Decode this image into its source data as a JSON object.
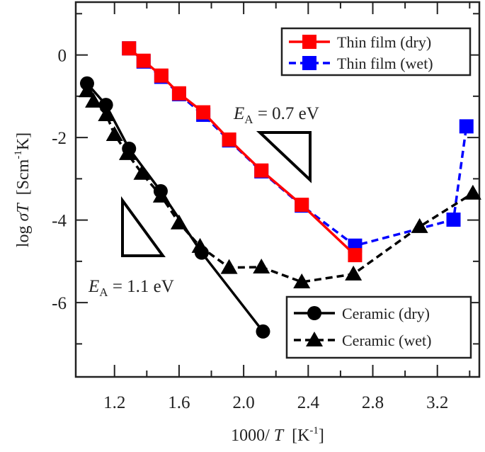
{
  "chart_data": {
    "type": "line",
    "xlabel": "1000/ T  [K-1]",
    "xlabel_parts": {
      "prefix": "1000/ ",
      "var": "T",
      "unit_open": "  [K",
      "unit_sup": "-1",
      "unit_close": "]"
    },
    "ylabel": "log σT  [Scm-1K]",
    "ylabel_parts": {
      "prefix": "log ",
      "var": "σT",
      "unit_open": "  [Scm",
      "unit_sup": "-1",
      "unit_close": "K]"
    },
    "xlim": [
      0.96,
      3.46
    ],
    "ylim": [
      -7.8,
      1.28
    ],
    "xticks": [
      1.2,
      1.6,
      2.0,
      2.4,
      2.8,
      3.2
    ],
    "xtick_labels": [
      "1.2",
      "1.6",
      "2.0",
      "2.4",
      "2.8",
      "3.2"
    ],
    "xminor": [
      1.4,
      1.8,
      2.2,
      2.6,
      3.0,
      3.4
    ],
    "yticks": [
      0,
      -2,
      -4,
      -6
    ],
    "ytick_labels": [
      "0",
      "-2",
      "-4",
      "-6"
    ],
    "yminor": [
      1,
      -1,
      -3,
      -5,
      -7
    ],
    "grid": false,
    "series": [
      {
        "name": "Thin film (dry)",
        "color": "#ff0000",
        "marker": "square",
        "line": "solid",
        "x": [
          1.29,
          1.38,
          1.49,
          1.6,
          1.75,
          1.91,
          2.11,
          2.36,
          2.69
        ],
        "y": [
          0.16,
          -0.14,
          -0.5,
          -0.93,
          -1.39,
          -2.05,
          -2.8,
          -3.63,
          -4.85
        ]
      },
      {
        "name": "Thin film (wet)",
        "color": "#0000ff",
        "marker": "square",
        "line": "dashed",
        "x": [
          1.29,
          1.38,
          1.49,
          1.6,
          1.75,
          1.91,
          2.11,
          2.36,
          2.69,
          3.3,
          3.38
        ],
        "y": [
          0.16,
          -0.16,
          -0.53,
          -0.95,
          -1.45,
          -2.07,
          -2.82,
          -3.65,
          -4.62,
          -3.99,
          -1.73
        ]
      },
      {
        "name": "Ceramic (dry)",
        "color": "#000000",
        "marker": "circle",
        "line": "solid",
        "x": [
          1.03,
          1.147,
          1.29,
          1.486,
          1.74,
          2.12
        ],
        "y": [
          -0.69,
          -1.21,
          -2.27,
          -3.3,
          -4.79,
          -6.7
        ]
      },
      {
        "name": "Ceramic (wet)",
        "color": "#000000",
        "marker": "triangle",
        "line": "dashed",
        "x": [
          1.03,
          1.07,
          1.15,
          1.2,
          1.28,
          1.37,
          1.49,
          1.6,
          1.73,
          1.91,
          2.11,
          2.36,
          2.68,
          3.09,
          3.42
        ],
        "y": [
          -0.87,
          -1.12,
          -1.45,
          -1.93,
          -2.39,
          -2.87,
          -3.42,
          -4.07,
          -4.64,
          -5.15,
          -5.14,
          -5.5,
          -5.31,
          -4.16,
          -3.35
        ]
      }
    ],
    "legends": [
      {
        "placement": "top-right",
        "entries": [
          0,
          1
        ]
      },
      {
        "placement": "bottom-right",
        "entries": [
          2,
          3
        ]
      }
    ],
    "annotations": [
      {
        "var": "E",
        "sub": "A",
        "text": " = 0.7 eV"
      },
      {
        "var": "E",
        "sub": "A",
        "text": " = 1.1 eV"
      }
    ]
  }
}
